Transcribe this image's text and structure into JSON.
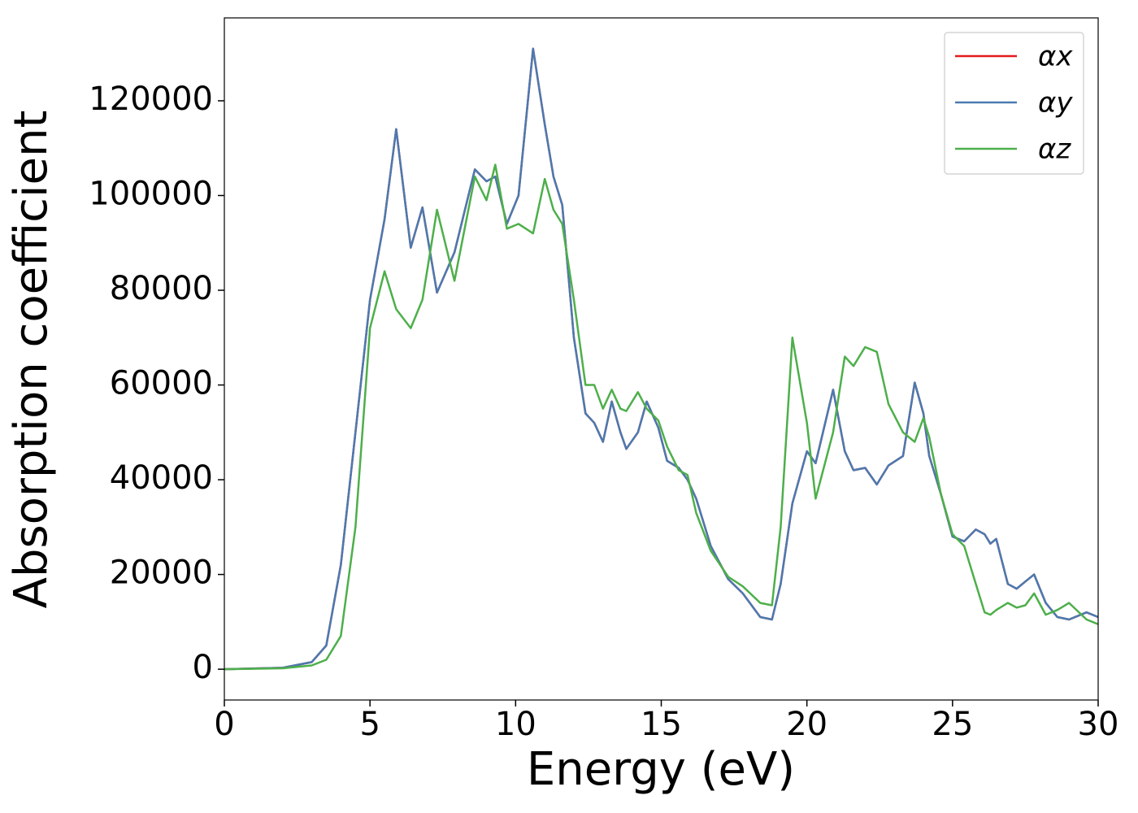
{
  "chart_data": {
    "type": "line",
    "xlabel": "Energy (eV)",
    "ylabel": "Absorption coefficient",
    "x": [
      0,
      2,
      3,
      3.5,
      4,
      4.5,
      5,
      5.5,
      5.9,
      6.4,
      6.8,
      7.3,
      7.9,
      8.6,
      9.0,
      9.3,
      9.7,
      10.1,
      10.6,
      11.0,
      11.3,
      11.6,
      12.0,
      12.4,
      12.7,
      13.0,
      13.3,
      13.6,
      13.8,
      14.2,
      14.5,
      14.9,
      15.2,
      15.6,
      15.9,
      16.2,
      16.7,
      17.3,
      17.8,
      18.4,
      18.8,
      19.1,
      19.5,
      20.0,
      20.3,
      20.9,
      21.3,
      21.6,
      22.0,
      22.4,
      22.8,
      23.3,
      23.7,
      24.0,
      24.2,
      24.6,
      25.0,
      25.4,
      25.8,
      26.1,
      26.3,
      26.5,
      26.9,
      27.2,
      27.5,
      27.8,
      28.2,
      28.6,
      29.0,
      29.6,
      30.0
    ],
    "series": [
      {
        "name": "αx",
        "color": "#e41a1c",
        "values": [
          0,
          300,
          1500,
          5000,
          22000,
          50000,
          78000,
          95000,
          114000,
          89000,
          97500,
          79500,
          88000,
          105500,
          103000,
          104000,
          94000,
          100000,
          131000,
          115000,
          104000,
          98000,
          70000,
          54000,
          52000,
          48000,
          56500,
          50000,
          46500,
          50000,
          56500,
          51000,
          44000,
          42500,
          40000,
          36000,
          26000,
          19000,
          16000,
          11000,
          10500,
          18000,
          35000,
          46000,
          43500,
          59000,
          46000,
          42000,
          42500,
          39000,
          43000,
          45000,
          60500,
          54000,
          45000,
          37000,
          28000,
          27000,
          29500,
          28500,
          26500,
          27500,
          18000,
          17000,
          18500,
          20000,
          14000,
          11000,
          10500,
          12000,
          11000
        ]
      },
      {
        "name": "αy",
        "color": "#4a7ab0",
        "values": [
          0,
          300,
          1500,
          5000,
          22000,
          50000,
          78000,
          95000,
          114000,
          89000,
          97500,
          79500,
          88000,
          105500,
          103000,
          104000,
          94000,
          100000,
          131000,
          115000,
          104000,
          98000,
          70000,
          54000,
          52000,
          48000,
          56500,
          50000,
          46500,
          50000,
          56500,
          51000,
          44000,
          42500,
          40000,
          36000,
          26000,
          19000,
          16000,
          11000,
          10500,
          18000,
          35000,
          46000,
          43500,
          59000,
          46000,
          42000,
          42500,
          39000,
          43000,
          45000,
          60500,
          54000,
          45000,
          37000,
          28000,
          27000,
          29500,
          28500,
          26500,
          27500,
          18000,
          17000,
          18500,
          20000,
          14000,
          11000,
          10500,
          12000,
          11000
        ]
      },
      {
        "name": "αz",
        "color": "#4daf4a",
        "values": [
          0,
          200,
          800,
          2000,
          7000,
          30000,
          72000,
          84000,
          76000,
          72000,
          78000,
          97000,
          82000,
          104000,
          99000,
          106500,
          93000,
          94000,
          92000,
          103500,
          97000,
          94000,
          78000,
          60000,
          60000,
          55000,
          59000,
          55000,
          54500,
          58500,
          55000,
          52500,
          47000,
          42000,
          41000,
          33000,
          25000,
          19500,
          17500,
          14000,
          13500,
          30000,
          70000,
          52000,
          36000,
          50000,
          66000,
          64000,
          68000,
          67000,
          56000,
          50000,
          48000,
          53000,
          49000,
          37000,
          28500,
          26000,
          18000,
          12000,
          11500,
          12500,
          14000,
          13000,
          13500,
          16000,
          11500,
          12500,
          14000,
          10500,
          9500
        ]
      }
    ],
    "xlim": [
      0,
      30
    ],
    "xticks": [
      0,
      5,
      10,
      15,
      20,
      25,
      30
    ],
    "ylim": [
      -6500,
      137500
    ],
    "yticks": [
      0,
      20000,
      40000,
      60000,
      80000,
      100000,
      120000
    ],
    "legend": "upper right",
    "grid": false
  }
}
